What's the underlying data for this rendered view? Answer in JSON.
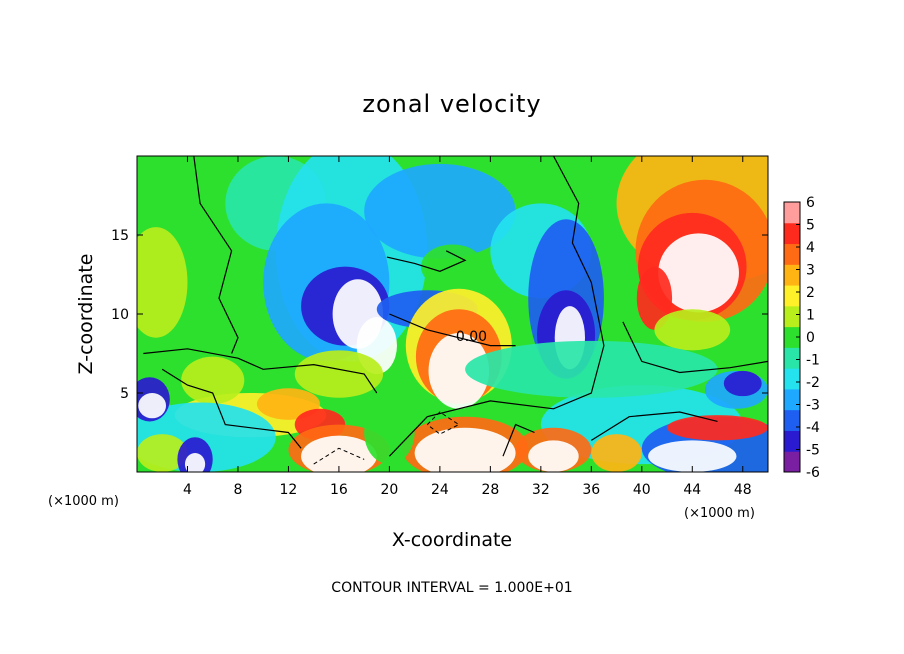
{
  "chart_data": {
    "type": "heatmap",
    "title": "zonal velocity",
    "xlabel": "X-coordinate",
    "ylabel": "Z-coordinate",
    "x_unit": "(×1000 m)",
    "y_unit": "(×1000 m)",
    "xlim": [
      0,
      50
    ],
    "ylim": [
      0,
      20
    ],
    "x_ticks": [
      4,
      8,
      12,
      16,
      20,
      24,
      28,
      32,
      36,
      40,
      44,
      48
    ],
    "y_ticks": [
      5,
      10,
      15
    ],
    "colorbar": {
      "min": -6,
      "max": 6,
      "ticks": [
        6,
        5,
        4,
        3,
        2,
        1,
        0,
        -1,
        -2,
        -3,
        -4,
        -5,
        -6
      ],
      "colors": [
        "#7a1fa2",
        "#2a1ad0",
        "#1e5ef0",
        "#1ea8ff",
        "#24e2ee",
        "#29e6a8",
        "#2ee02e",
        "#b8ee1c",
        "#fff02a",
        "#ffb414",
        "#ff6a14",
        "#ff2a1e",
        "#ff9c9c"
      ]
    },
    "contour_label": "0.00",
    "annotation": "CONTOUR INTERVAL = 1.000E+01"
  }
}
